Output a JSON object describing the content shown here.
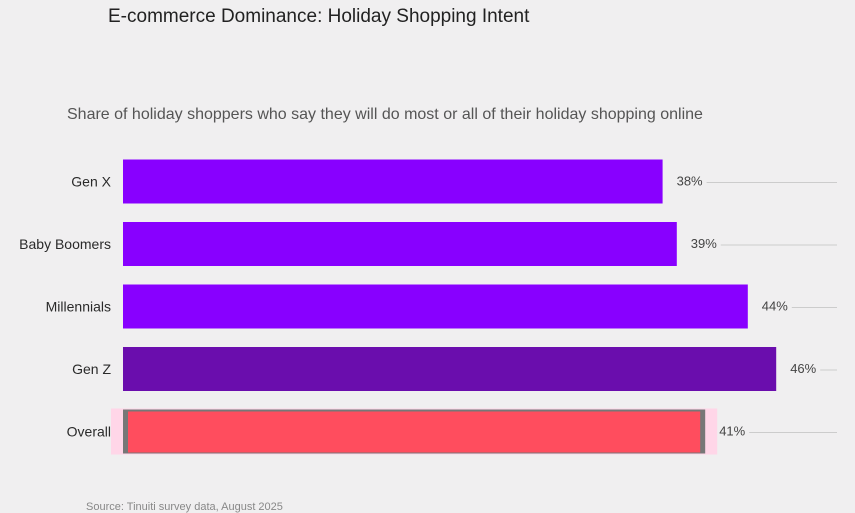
{
  "title": "E-commerce Dominance: Holiday Shopping Intent",
  "subtitle": "Share of holiday shoppers who say they will do most or all of their holiday shopping online",
  "source": "Source: Tinuiti survey data, August 2025",
  "colors": {
    "default_bar": "#8800ff",
    "genz_bar": "#6a0dad",
    "overall_bar": "#ff4d5e",
    "overall_frame": "#777777",
    "overall_glow": "#ffd6e8",
    "gridline": "#cccccc"
  },
  "chart_data": {
    "type": "bar",
    "orientation": "horizontal",
    "categories": [
      "Gen X",
      "Baby Boomers",
      "Millennials",
      "Gen Z",
      "Overall"
    ],
    "values": [
      38,
      39,
      44,
      46,
      41
    ],
    "value_labels": [
      "38%",
      "39%",
      "44%",
      "46%",
      "41%"
    ],
    "unit": "%",
    "xlim": [
      0,
      50
    ],
    "highlight": {
      "Gen Z": "genz_bar",
      "Overall": "overall_bar"
    },
    "title": "E-commerce Dominance: Holiday Shopping Intent",
    "subtitle": "Share of holiday shoppers who say they will do most or all of their holiday shopping online",
    "grid": true
  }
}
